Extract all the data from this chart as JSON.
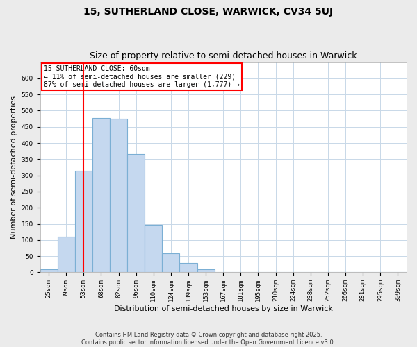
{
  "title": "15, SUTHERLAND CLOSE, WARWICK, CV34 5UJ",
  "subtitle": "Size of property relative to semi-detached houses in Warwick",
  "xlabel": "Distribution of semi-detached houses by size in Warwick",
  "ylabel": "Number of semi-detached properties",
  "bar_labels": [
    "25sqm",
    "39sqm",
    "53sqm",
    "68sqm",
    "82sqm",
    "96sqm",
    "110sqm",
    "124sqm",
    "139sqm",
    "153sqm",
    "167sqm",
    "181sqm",
    "195sqm",
    "210sqm",
    "224sqm",
    "238sqm",
    "252sqm",
    "266sqm",
    "281sqm",
    "295sqm",
    "309sqm"
  ],
  "bar_values": [
    10,
    110,
    315,
    478,
    475,
    365,
    148,
    60,
    28,
    10,
    0,
    0,
    0,
    0,
    0,
    0,
    0,
    0,
    0,
    0,
    0
  ],
  "bar_color": "#c5d8ef",
  "bar_edge_color": "#7bafd4",
  "vline_x": 2.0,
  "annotation_title": "15 SUTHERLAND CLOSE: 60sqm",
  "annotation_line1": "← 11% of semi-detached houses are smaller (229)",
  "annotation_line2": "87% of semi-detached houses are larger (1,777) →",
  "vline_color": "red",
  "ylim": [
    0,
    650
  ],
  "yticks": [
    0,
    50,
    100,
    150,
    200,
    250,
    300,
    350,
    400,
    450,
    500,
    550,
    600
  ],
  "footer_line1": "Contains HM Land Registry data © Crown copyright and database right 2025.",
  "footer_line2": "Contains public sector information licensed under the Open Government Licence v3.0.",
  "background_color": "#ebebeb",
  "plot_bg_color": "#ffffff",
  "grid_color": "#c8d8e8",
  "title_fontsize": 10,
  "subtitle_fontsize": 9,
  "tick_fontsize": 6.5,
  "label_fontsize": 8,
  "annotation_fontsize": 7,
  "footer_fontsize": 6
}
